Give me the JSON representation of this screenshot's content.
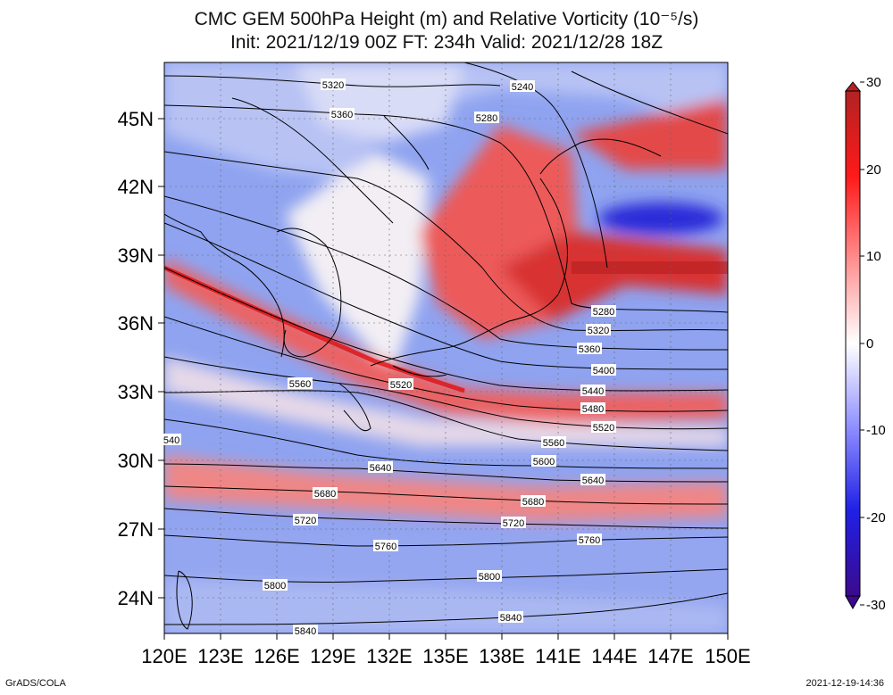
{
  "title": {
    "line1": "CMC GEM 500hPa Height (m) and Relative Vorticity (10⁻⁵/s)",
    "line2": "Init: 2021/12/19 00Z  FT: 234h  Valid: 2021/12/28 18Z"
  },
  "axes": {
    "x_ticks": [
      "120E",
      "123E",
      "126E",
      "129E",
      "132E",
      "135E",
      "138E",
      "141E",
      "144E",
      "147E",
      "150E"
    ],
    "y_ticks": [
      "24N",
      "27N",
      "30N",
      "33N",
      "36N",
      "39N",
      "42N",
      "45N"
    ]
  },
  "colorbar": {
    "ticks": [
      "30",
      "20",
      "10",
      "0",
      "-10",
      "-20",
      "-30"
    ],
    "colors": {
      "max": "#b22222",
      "pos": "#ff1a1a",
      "mid": "#ffffff",
      "neg": "#3333ff",
      "min": "#3b0a8c"
    }
  },
  "contour_labels": [
    {
      "id": "c5320a",
      "text": "5320"
    },
    {
      "id": "c5240",
      "text": "5240"
    },
    {
      "id": "c5360a",
      "text": "5360"
    },
    {
      "id": "c5280a",
      "text": "5280"
    },
    {
      "id": "c5280b",
      "text": "5280"
    },
    {
      "id": "c5320b",
      "text": "5320"
    },
    {
      "id": "c5360b",
      "text": "5360"
    },
    {
      "id": "c5400",
      "text": "5400"
    },
    {
      "id": "c5440",
      "text": "5440"
    },
    {
      "id": "c5480",
      "text": "5480"
    },
    {
      "id": "c5520a",
      "text": "5520"
    },
    {
      "id": "c5520b",
      "text": "5520"
    },
    {
      "id": "c5560a",
      "text": "5560"
    },
    {
      "id": "c5560b",
      "text": "5560"
    },
    {
      "id": "c5600",
      "text": "5600"
    },
    {
      "id": "c5640a",
      "text": "5640"
    },
    {
      "id": "c5640b",
      "text": "5640"
    },
    {
      "id": "c5680a",
      "text": "5680"
    },
    {
      "id": "c5680b",
      "text": "5680"
    },
    {
      "id": "c5720a",
      "text": "5720"
    },
    {
      "id": "c5720b",
      "text": "5720"
    },
    {
      "id": "c5760a",
      "text": "5760"
    },
    {
      "id": "c5760b",
      "text": "5760"
    },
    {
      "id": "c5800a",
      "text": "5800"
    },
    {
      "id": "c5800b",
      "text": "5800"
    },
    {
      "id": "c5840a",
      "text": "5840"
    },
    {
      "id": "c5840b",
      "text": "5840"
    },
    {
      "id": "c540",
      "text": "540"
    }
  ],
  "footer": {
    "left": "GrADS/COLA",
    "right": "2021-12-19-14:36"
  }
}
